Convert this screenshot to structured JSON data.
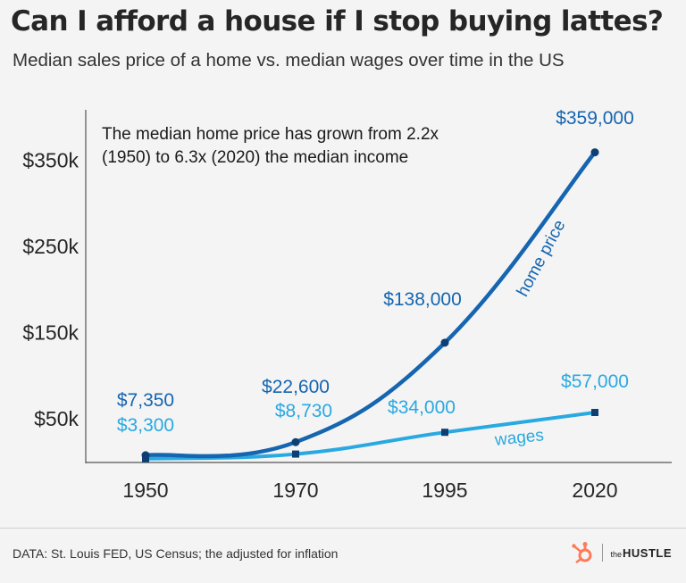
{
  "title": "Can I afford a house if I stop buying lattes?",
  "subtitle": "Median sales price of a home vs. median wages over time in the US",
  "annotation": "The median home price has grown from 2.2x (1950) to 6.3x (2020) the median income",
  "source": "DATA: St. Louis FED, US Census; the adjusted for inflation",
  "logo": {
    "the": "the",
    "name": "HUSTLE"
  },
  "colors": {
    "home_price": "#1565b0",
    "wages": "#29a9e1",
    "background": "#f4f4f4",
    "logo_accent": "#ff7a59"
  },
  "chart_data": {
    "type": "line",
    "categories": [
      "1950",
      "1970",
      "1995",
      "2020"
    ],
    "y_ticks": [
      {
        "value": 50000,
        "label": "$50k"
      },
      {
        "value": 150000,
        "label": "$150k"
      },
      {
        "value": 250000,
        "label": "$250k"
      },
      {
        "value": 350000,
        "label": "$350k"
      }
    ],
    "ylim": [
      0,
      400000
    ],
    "grid": false,
    "series": [
      {
        "name": "home price",
        "values": [
          7350,
          22600,
          138000,
          359000
        ],
        "labels": [
          "$7,350",
          "$22,600",
          "$138,000",
          "$359,000"
        ]
      },
      {
        "name": "wages",
        "values": [
          3300,
          8730,
          34000,
          57000
        ],
        "labels": [
          "$3,300",
          "$8,730",
          "$34,000",
          "$57,000"
        ]
      }
    ]
  }
}
